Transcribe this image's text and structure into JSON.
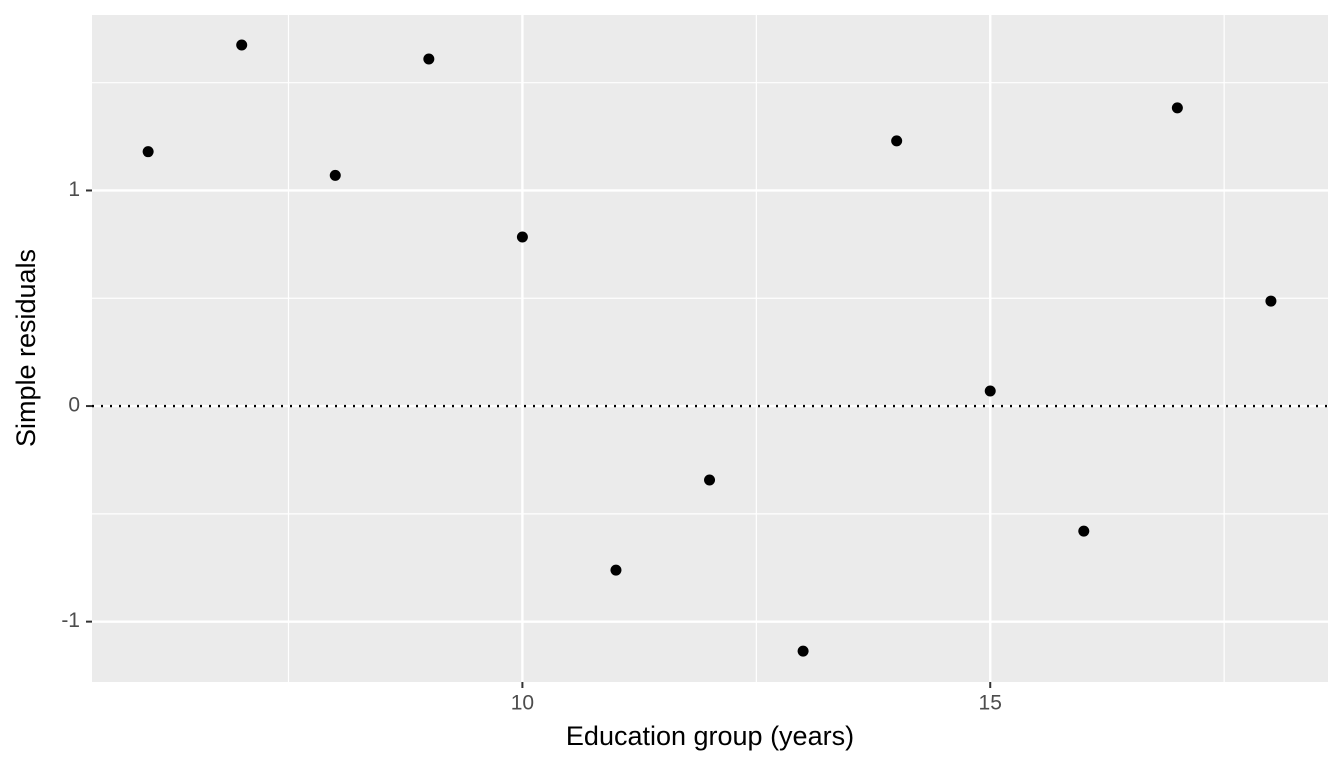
{
  "chart_data": {
    "type": "scatter",
    "x_label": "Education group (years)",
    "y_label": "Simple residuals",
    "x": [
      6,
      7,
      8,
      9,
      10,
      11,
      12,
      13,
      14,
      15,
      16,
      17,
      18
    ],
    "values": [
      1.18,
      1.675,
      1.07,
      1.61,
      0.784,
      -0.761,
      -0.343,
      -1.137,
      1.23,
      0.07,
      -0.58,
      1.383,
      0.487
    ],
    "color": "#000000",
    "xlim": [
      5.4,
      18.61
    ],
    "ylim": [
      -1.28,
      1.814
    ],
    "xticks": [
      10,
      15
    ],
    "yticks": [
      -1,
      0,
      1
    ],
    "x_minor_grid": [
      7.5,
      12.5,
      17.5
    ],
    "y_minor_grid": [
      -0.5,
      0.5,
      1.5
    ],
    "hline": 0,
    "grid": true
  }
}
